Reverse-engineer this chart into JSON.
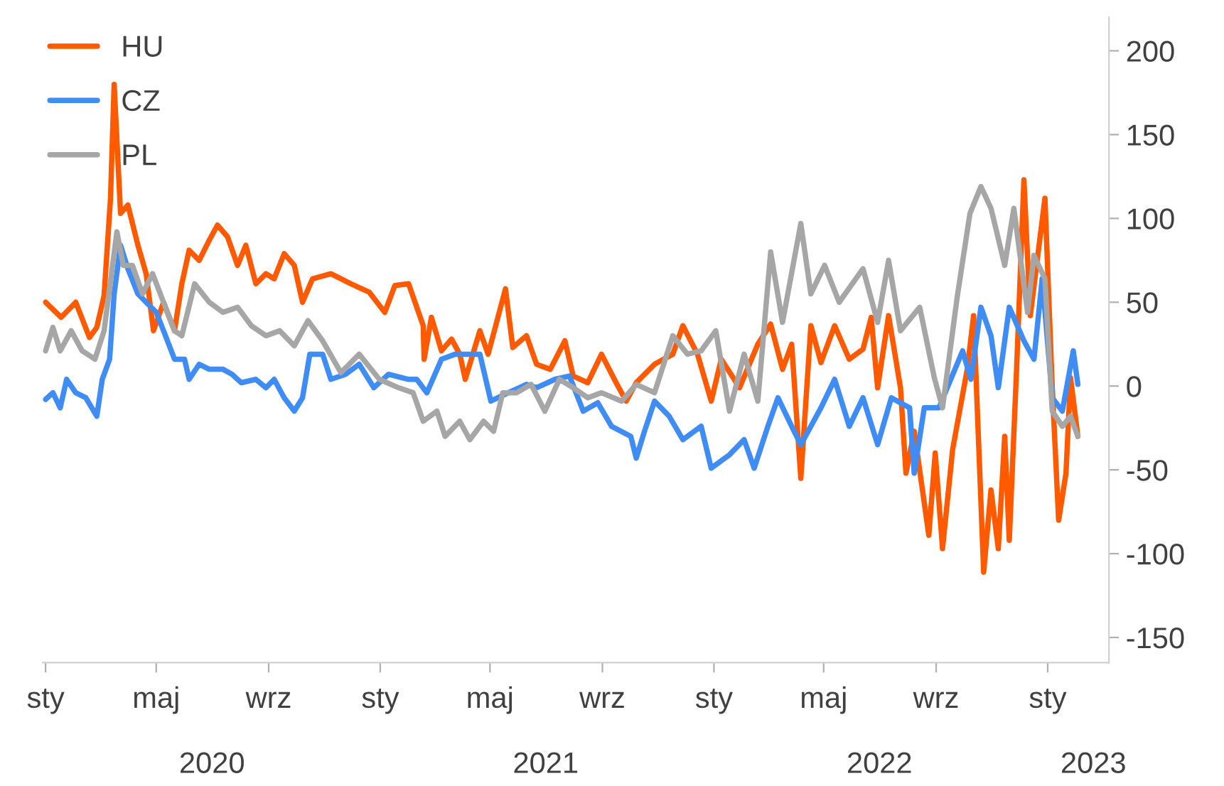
{
  "chart_data": {
    "type": "line",
    "xlim": [
      "2019-12-29",
      "2023-03-09"
    ],
    "xticks": [
      {
        "value": "2020-01-01",
        "label": null
      },
      {
        "value": "2020-05-01",
        "label": null
      },
      {
        "value": "2020-07-01",
        "label": "2020"
      },
      {
        "value": "2020-09-01",
        "label": null
      },
      {
        "value": "2021-01-01",
        "label": null
      },
      {
        "value": "2021-05-01",
        "label": null
      },
      {
        "value": "2021-07-01",
        "label": "2021"
      },
      {
        "value": "2021-09-01",
        "label": null
      },
      {
        "value": "2022-01-01",
        "label": null
      },
      {
        "value": "2022-05-01",
        "label": null
      },
      {
        "value": "2022-07-01",
        "label": "2022"
      },
      {
        "value": "2022-09-01",
        "label": null
      },
      {
        "value": "2023-01-01",
        "label": null
      },
      {
        "value": "2023-02-20",
        "label": "2023"
      }
    ],
    "annotations": [
      "sty",
      "maj",
      "wrz",
      "sty",
      "maj",
      "wrz",
      "sty",
      "maj",
      "wrz",
      "sty"
    ],
    "ylim": [
      -165,
      220
    ],
    "yticks": [
      -150,
      -100,
      -50,
      0,
      50,
      100,
      150,
      200
    ],
    "grid": false,
    "legend": "top left",
    "marker": "none",
    "line_style": "solid",
    "series": [
      {
        "name": "HU",
        "color": "#ff5a00",
        "x": [
          "2020-01-01",
          "2020-01-18",
          "2020-02-03",
          "2020-02-18",
          "2020-02-26",
          "2020-03-05",
          "2020-03-12",
          "2020-03-16",
          "2020-03-23",
          "2020-03-31",
          "2020-04-11",
          "2020-04-20",
          "2020-04-28",
          "2020-05-09",
          "2020-05-21",
          "2020-05-29",
          "2020-06-06",
          "2020-06-17",
          "2020-06-28",
          "2020-07-07",
          "2020-07-18",
          "2020-07-29",
          "2020-08-07",
          "2020-08-18",
          "2020-08-29",
          "2020-09-07",
          "2020-09-18",
          "2020-09-29",
          "2020-10-08",
          "2020-10-19",
          "2020-11-08",
          "2020-11-30",
          "2020-12-20",
          "2021-01-06",
          "2021-01-17",
          "2021-02-01",
          "2021-02-17",
          "2021-02-18",
          "2021-02-26",
          "2021-03-09",
          "2021-03-20",
          "2021-03-29",
          "2021-04-04",
          "2021-04-20",
          "2021-04-29",
          "2021-05-18",
          "2021-05-26",
          "2021-06-10",
          "2021-06-21",
          "2021-07-06",
          "2021-07-22",
          "2021-07-31",
          "2021-08-16",
          "2021-08-31",
          "2021-09-16",
          "2021-09-27",
          "2021-10-08",
          "2021-10-28",
          "2021-11-17",
          "2021-11-28",
          "2021-12-14",
          "2021-12-29",
          "2022-01-09",
          "2022-01-29",
          "2022-02-18",
          "2022-03-04",
          "2022-03-17",
          "2022-03-27",
          "2022-04-06",
          "2022-04-17",
          "2022-04-28",
          "2022-05-13",
          "2022-05-29",
          "2022-06-13",
          "2022-06-22",
          "2022-06-29",
          "2022-07-11",
          "2022-07-24",
          "2022-07-30",
          "2022-08-08",
          "2022-08-24",
          "2022-08-31",
          "2022-09-08",
          "2022-09-19",
          "2022-10-05",
          "2022-10-12",
          "2022-10-23",
          "2022-10-31",
          "2022-11-08",
          "2022-11-15",
          "2022-11-20",
          "2022-11-28",
          "2022-12-06",
          "2022-12-13",
          "2022-12-29",
          "2023-01-06",
          "2023-01-13",
          "2023-01-21",
          "2023-01-26",
          "2023-02-03"
        ],
        "values": [
          50,
          41,
          50,
          29,
          35,
          54,
          112,
          180,
          103,
          108,
          84,
          67,
          33,
          50,
          33,
          61,
          81,
          75,
          87,
          96,
          89,
          72,
          84,
          61,
          67,
          64,
          79,
          72,
          50,
          64,
          67,
          61,
          56,
          44,
          60,
          61,
          36,
          16,
          41,
          21,
          28,
          19,
          4,
          33,
          19,
          58,
          23,
          30,
          13,
          10,
          27,
          6,
          2,
          19,
          2,
          -9,
          2,
          13,
          19,
          36,
          19,
          -9,
          16,
          -1,
          25,
          37,
          10,
          25,
          -55,
          36,
          14,
          36,
          16,
          22,
          41,
          -1,
          42,
          -1,
          -52,
          -27,
          -89,
          -40,
          -97,
          -38,
          10,
          42,
          -111,
          -62,
          -97,
          -30,
          -92,
          10,
          123,
          42,
          112,
          -1,
          -80,
          -52,
          5,
          -30
        ]
      },
      {
        "name": "CZ",
        "color": "#3f8cf5",
        "x": [
          "2020-01-01",
          "2020-01-09",
          "2020-01-17",
          "2020-01-24",
          "2020-02-03",
          "2020-02-14",
          "2020-02-26",
          "2020-03-03",
          "2020-03-11",
          "2020-03-16",
          "2020-03-23",
          "2020-03-31",
          "2020-04-11",
          "2020-04-20",
          "2020-05-01",
          "2020-05-09",
          "2020-05-21",
          "2020-06-01",
          "2020-06-06",
          "2020-06-17",
          "2020-06-28",
          "2020-07-13",
          "2020-07-23",
          "2020-08-02",
          "2020-08-18",
          "2020-08-29",
          "2020-09-07",
          "2020-09-18",
          "2020-09-29",
          "2020-10-08",
          "2020-10-16",
          "2020-10-30",
          "2020-11-08",
          "2020-11-24",
          "2020-12-09",
          "2020-12-25",
          "2021-01-10",
          "2021-02-01",
          "2021-02-10",
          "2021-02-21",
          "2021-03-09",
          "2021-03-24",
          "2021-04-09",
          "2021-04-20",
          "2021-05-02",
          "2021-05-21",
          "2021-06-10",
          "2021-06-21",
          "2021-07-11",
          "2021-07-27",
          "2021-08-11",
          "2021-08-27",
          "2021-09-11",
          "2021-10-02",
          "2021-10-08",
          "2021-10-17",
          "2021-10-28",
          "2021-11-13",
          "2021-11-28",
          "2021-12-18",
          "2021-12-29",
          "2022-01-18",
          "2022-02-03",
          "2022-02-14",
          "2022-03-01",
          "2022-03-12",
          "2022-03-27",
          "2022-04-06",
          "2022-04-28",
          "2022-05-13",
          "2022-05-29",
          "2022-06-13",
          "2022-06-29",
          "2022-07-14",
          "2022-08-03",
          "2022-08-08",
          "2022-08-19",
          "2022-09-04",
          "2022-09-30",
          "2022-10-09",
          "2022-10-20",
          "2022-10-31",
          "2022-11-08",
          "2022-11-20",
          "2022-12-06",
          "2022-12-17",
          "2022-12-26",
          "2023-01-06",
          "2023-01-17",
          "2023-01-29",
          "2023-02-03"
        ],
        "values": [
          -8,
          -4,
          -13,
          4,
          -4,
          -7,
          -18,
          4,
          16,
          55,
          84,
          70,
          55,
          50,
          44,
          33,
          16,
          16,
          4,
          13,
          10,
          10,
          7,
          2,
          4,
          -1,
          4,
          -7,
          -15,
          -7,
          19,
          19,
          4,
          7,
          13,
          -1,
          7,
          4,
          4,
          -4,
          16,
          19,
          19,
          19,
          -9,
          -4,
          1,
          -1,
          4,
          6,
          -15,
          -10,
          -24,
          -30,
          -43,
          -27,
          -9,
          -18,
          -32,
          -24,
          -49,
          -41,
          -32,
          -49,
          -24,
          -7,
          -24,
          -35,
          -13,
          4,
          -24,
          -7,
          -35,
          -7,
          -13,
          -52,
          -13,
          -13,
          21,
          4,
          47,
          30,
          -1,
          47,
          27,
          16,
          64,
          -7,
          -15,
          21,
          1
        ]
      },
      {
        "name": "PL",
        "color": "#a6a6a6",
        "x": [
          "2020-01-01",
          "2020-01-09",
          "2020-01-17",
          "2020-01-29",
          "2020-02-10",
          "2020-02-24",
          "2020-03-05",
          "2020-03-19",
          "2020-03-26",
          "2020-04-05",
          "2020-04-16",
          "2020-04-27",
          "2020-05-09",
          "2020-05-21",
          "2020-05-29",
          "2020-06-12",
          "2020-06-28",
          "2020-07-13",
          "2020-07-29",
          "2020-08-13",
          "2020-08-29",
          "2020-09-13",
          "2020-09-29",
          "2020-10-14",
          "2020-10-30",
          "2020-11-19",
          "2020-12-09",
          "2020-12-31",
          "2021-01-21",
          "2021-02-06",
          "2021-02-17",
          "2021-03-04",
          "2021-03-13",
          "2021-03-29",
          "2021-04-09",
          "2021-04-24",
          "2021-05-05",
          "2021-05-15",
          "2021-05-30",
          "2021-06-15",
          "2021-06-30",
          "2021-07-16",
          "2021-07-31",
          "2021-08-16",
          "2021-08-31",
          "2021-09-22",
          "2021-10-08",
          "2021-10-28",
          "2021-11-17",
          "2021-12-03",
          "2021-12-18",
          "2022-01-03",
          "2022-01-18",
          "2022-02-03",
          "2022-02-18",
          "2022-03-04",
          "2022-03-17",
          "2022-04-06",
          "2022-04-17",
          "2022-05-02",
          "2022-05-18",
          "2022-06-13",
          "2022-06-29",
          "2022-07-11",
          "2022-07-24",
          "2022-08-14",
          "2022-08-30",
          "2022-09-08",
          "2022-09-24",
          "2022-10-08",
          "2022-10-20",
          "2022-10-31",
          "2022-11-15",
          "2022-11-25",
          "2022-12-10",
          "2022-12-17",
          "2022-12-29",
          "2023-01-06",
          "2023-01-17",
          "2023-01-26",
          "2023-02-03"
        ],
        "values": [
          21,
          35,
          21,
          33,
          21,
          16,
          33,
          92,
          72,
          72,
          55,
          67,
          50,
          33,
          30,
          61,
          50,
          44,
          47,
          36,
          30,
          33,
          24,
          39,
          27,
          8,
          19,
          4,
          -1,
          -4,
          -21,
          -15,
          -30,
          -21,
          -32,
          -21,
          -27,
          -4,
          -4,
          1,
          -15,
          4,
          -1,
          -7,
          -4,
          -9,
          1,
          -4,
          30,
          19,
          21,
          33,
          -15,
          19,
          -9,
          80,
          38,
          97,
          55,
          72,
          50,
          70,
          38,
          75,
          33,
          47,
          5,
          -13,
          53,
          103,
          119,
          106,
          72,
          106,
          44,
          78,
          64,
          -15,
          -24,
          -18,
          -30
        ]
      }
    ]
  }
}
